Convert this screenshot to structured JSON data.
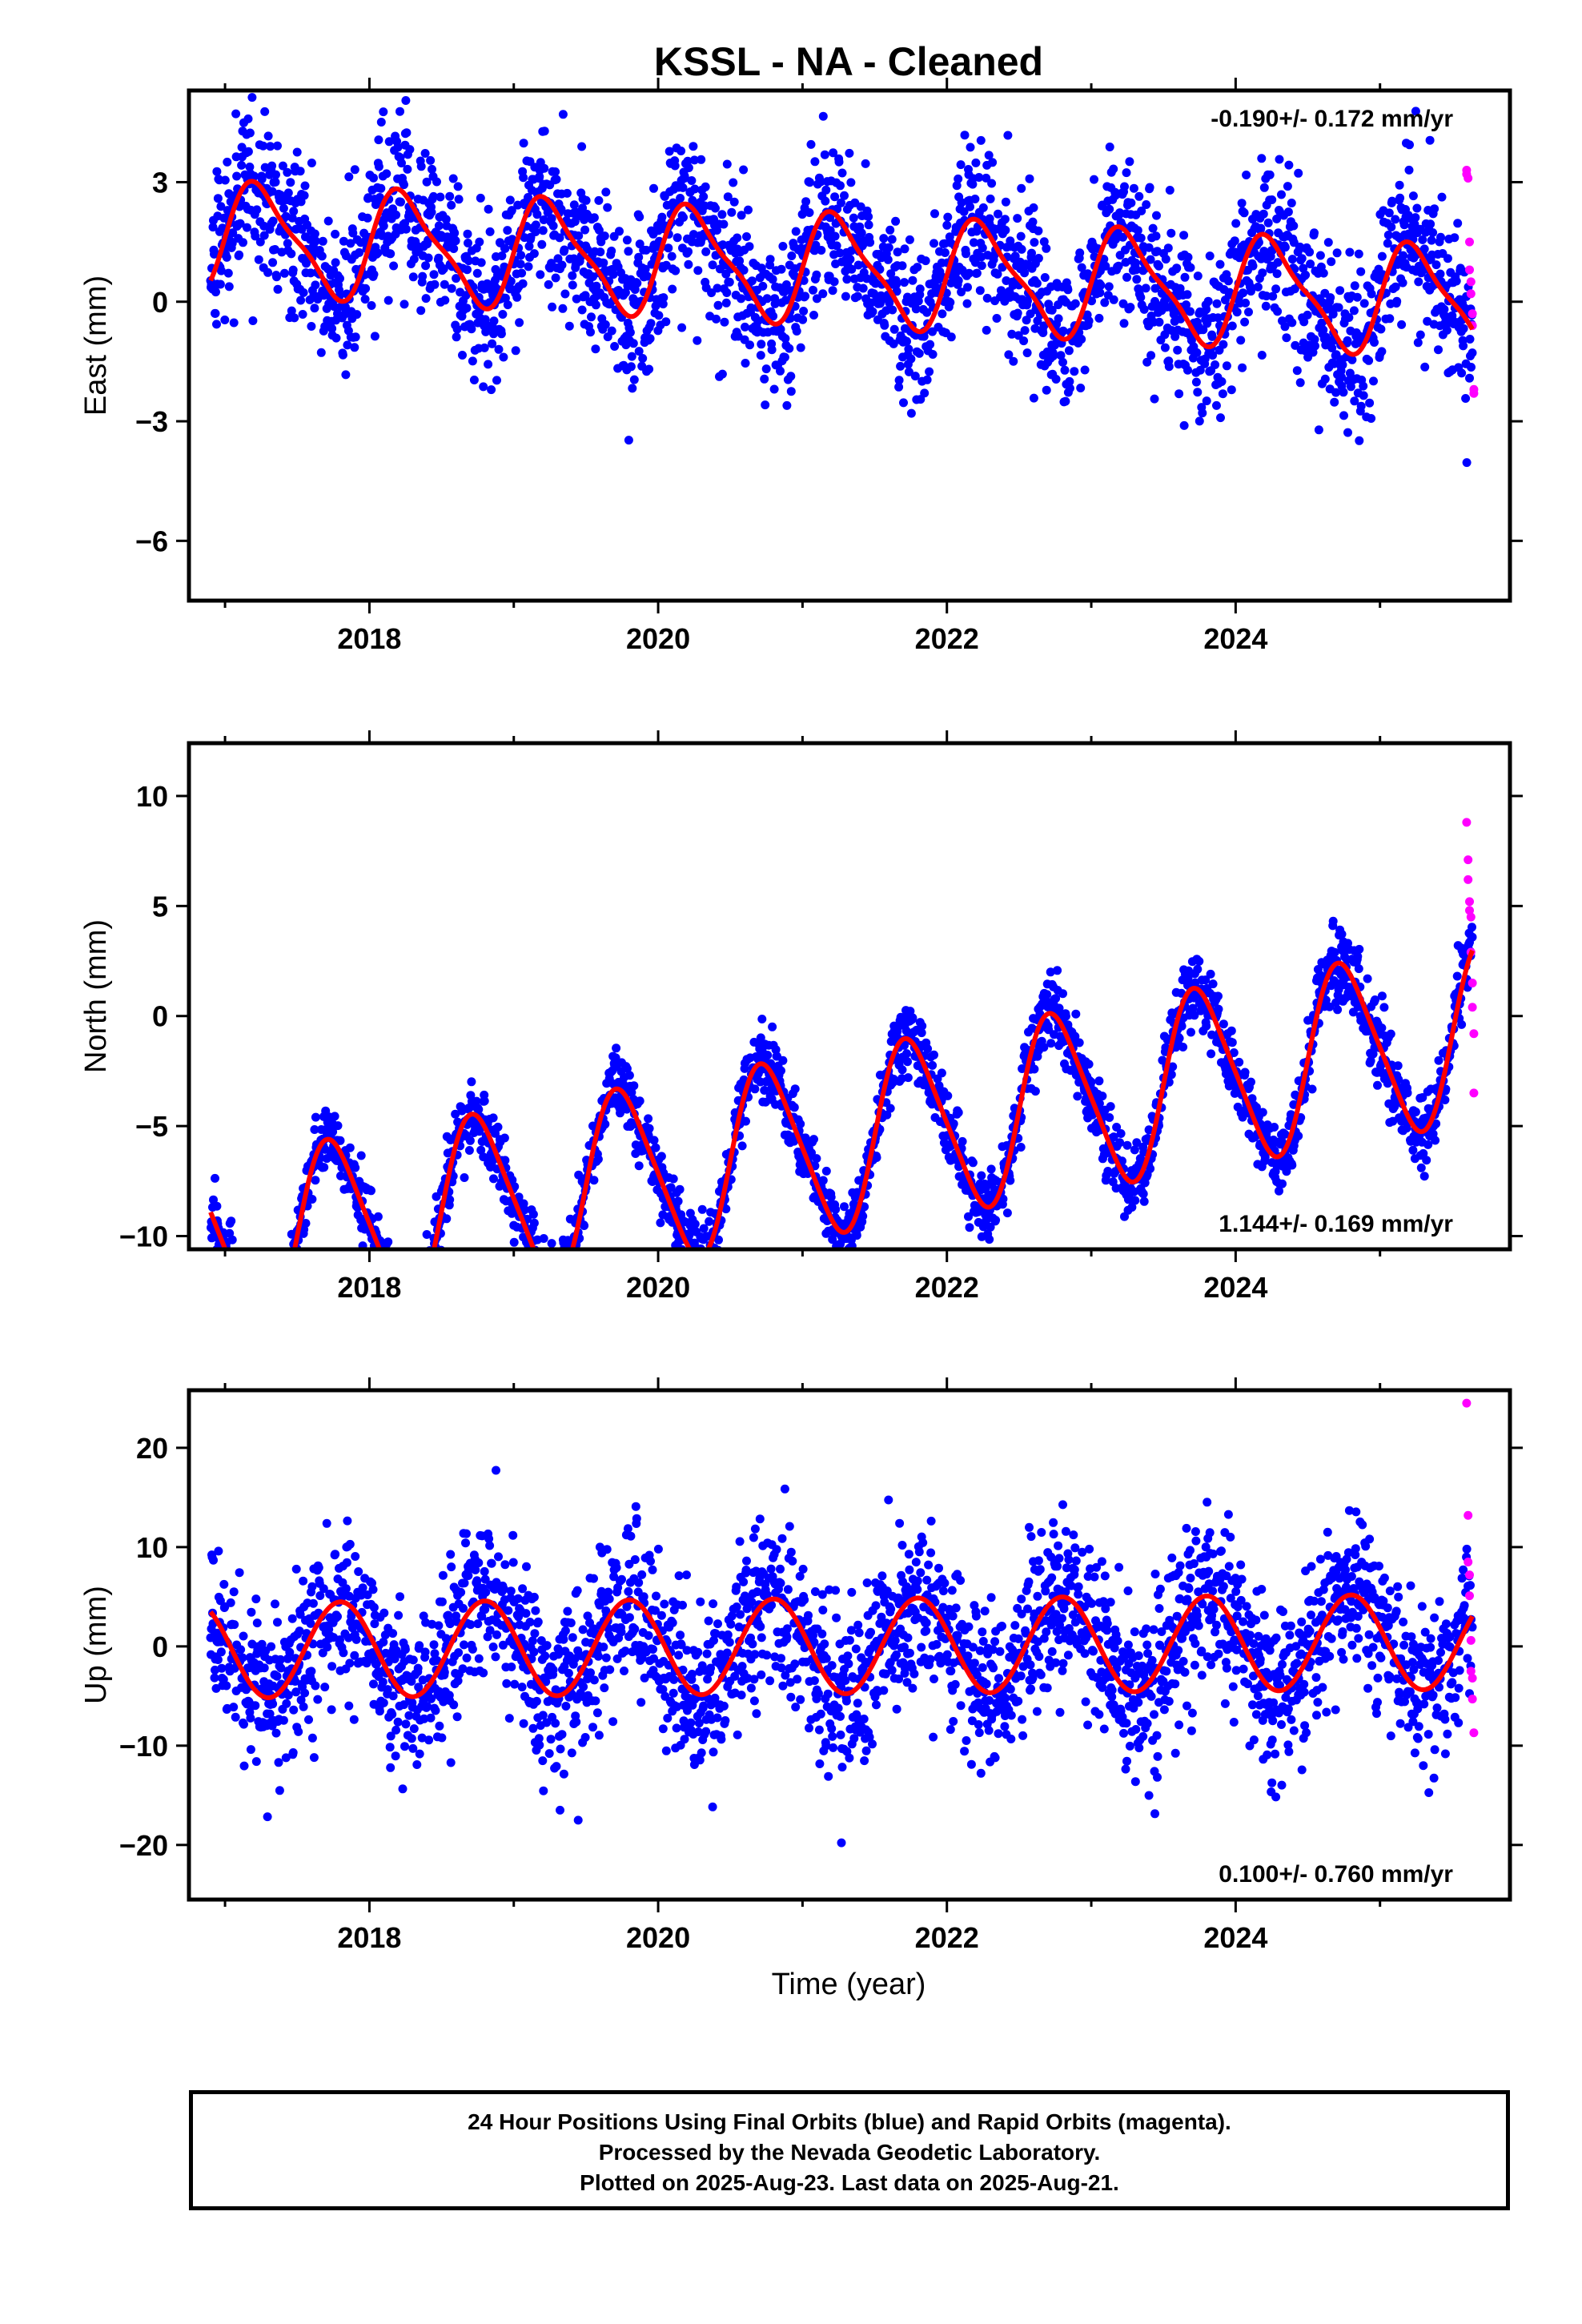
{
  "title": "KSSL  - NA - Cleaned",
  "xlabel": "Time (year)",
  "footer": {
    "line1": "24 Hour Positions Using Final Orbits (blue) and Rapid Orbits (magenta).",
    "line2": "Processed by the Nevada Geodetic Laboratory.",
    "line3": "Plotted on 2025-Aug-23. Last data on 2025-Aug-21."
  },
  "colors": {
    "final_orbits": "#0000ff",
    "rapid_orbits": "#ff00ff",
    "model_fit": "#ff0000"
  },
  "chart_data": [
    {
      "type": "scatter",
      "component": "east",
      "ylabel": "East (mm)",
      "rate_text": "-0.190+/- 0.172 mm/yr",
      "xlim": [
        2016.75,
        2025.9
      ],
      "ylim": [
        -7.5,
        5.3
      ],
      "xticks": [
        2018,
        2020,
        2022,
        2024
      ],
      "yticks": [
        -6,
        -3,
        0,
        3
      ],
      "yticklabels": [
        "−6",
        "−3",
        "0",
        "3"
      ],
      "data_start": 2016.9,
      "data_end": 2025.64,
      "fit": {
        "rate": -0.19,
        "offset": 0.85,
        "annual_amp": 1.3,
        "annual_phase": 0.0,
        "semiannual_amp": 0.35,
        "noise": 1.0
      },
      "rapid_points": [
        [
          2025.6,
          3.3
        ],
        [
          2025.61,
          3.1
        ],
        [
          2025.62,
          1.5
        ],
        [
          2025.62,
          0.8
        ],
        [
          2025.63,
          0.5
        ],
        [
          2025.63,
          0.2
        ],
        [
          2025.64,
          -0.3
        ],
        [
          2025.64,
          -0.6
        ],
        [
          2025.65,
          -2.2
        ],
        [
          2025.65,
          -2.3
        ],
        [
          2025.6,
          3.2
        ]
      ]
    },
    {
      "type": "scatter",
      "component": "north",
      "ylabel": "North (mm)",
      "rate_text": "1.144+/- 0.169 mm/yr",
      "xlim": [
        2016.75,
        2025.9
      ],
      "ylim": [
        -10.6,
        12.4
      ],
      "xticks": [
        2018,
        2020,
        2022,
        2024
      ],
      "yticks": [
        -10,
        -5,
        0,
        5,
        10
      ],
      "yticklabels": [
        "−10",
        "−5",
        "0",
        "5",
        "10"
      ],
      "data_start": 2016.9,
      "data_end": 2025.64,
      "fit": {
        "rate": 1.144,
        "offset": -6.0,
        "annual_amp": 4.0,
        "annual_phase": 0.5,
        "semiannual_amp": 0.6,
        "noise": 0.8
      },
      "rapid_points": [
        [
          2025.6,
          8.8
        ],
        [
          2025.61,
          7.1
        ],
        [
          2025.61,
          6.2
        ],
        [
          2025.62,
          5.2
        ],
        [
          2025.62,
          4.8
        ],
        [
          2025.63,
          4.5
        ],
        [
          2025.63,
          2.9
        ],
        [
          2025.64,
          1.5
        ],
        [
          2025.64,
          0.4
        ],
        [
          2025.65,
          -0.8
        ],
        [
          2025.65,
          -3.5
        ]
      ]
    },
    {
      "type": "scatter",
      "component": "up",
      "ylabel": "Up (mm)",
      "rate_text": "0.100+/- 0.760 mm/yr",
      "xlim": [
        2016.75,
        2025.9
      ],
      "ylim": [
        -25.5,
        25.8
      ],
      "xticks": [
        2018,
        2020,
        2022,
        2024
      ],
      "yticks": [
        -20,
        -10,
        0,
        10,
        20
      ],
      "yticklabels": [
        "−20",
        "−10",
        "0",
        "10",
        "20"
      ],
      "data_start": 2016.9,
      "data_end": 2025.64,
      "fit": {
        "rate": 0.1,
        "offset": 0.0,
        "annual_amp": 4.8,
        "annual_phase": 0.45,
        "semiannual_amp": 0.0,
        "noise": 4.2
      },
      "rapid_points": [
        [
          2025.6,
          24.5
        ],
        [
          2025.61,
          13.2
        ],
        [
          2025.61,
          8.5
        ],
        [
          2025.62,
          7.2
        ],
        [
          2025.62,
          5.1
        ],
        [
          2025.63,
          0.6
        ],
        [
          2025.63,
          -2.5
        ],
        [
          2025.64,
          -3.2
        ],
        [
          2025.64,
          -5.3
        ],
        [
          2025.65,
          -8.7
        ]
      ]
    }
  ]
}
